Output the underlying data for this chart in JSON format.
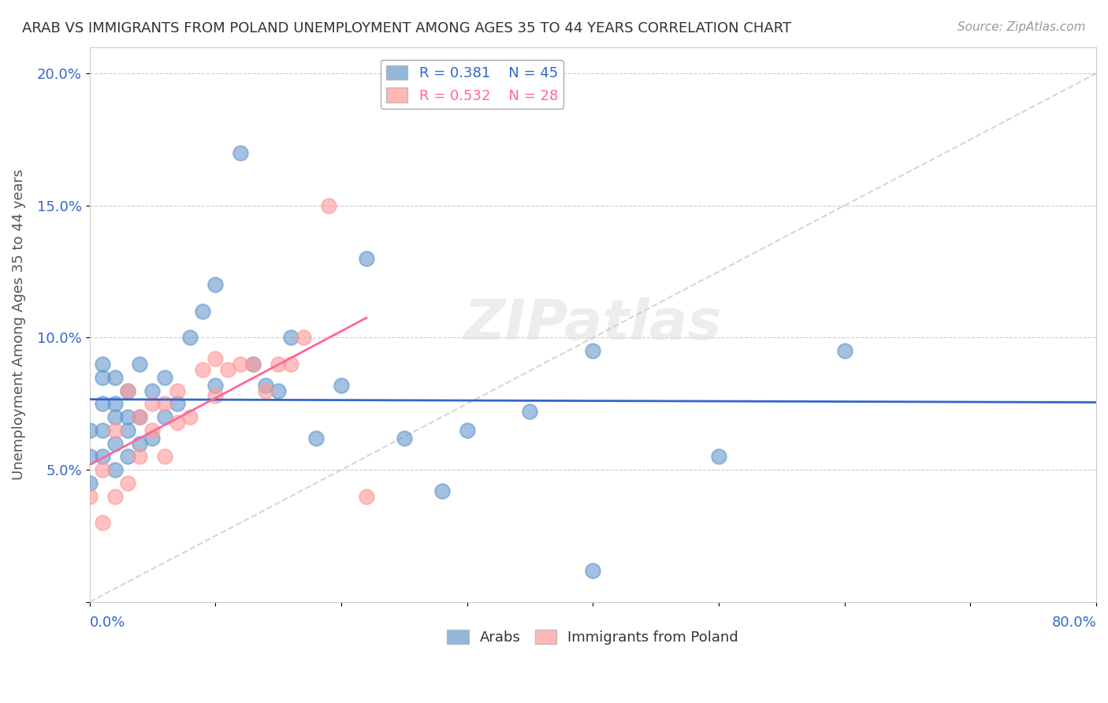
{
  "title": "ARAB VS IMMIGRANTS FROM POLAND UNEMPLOYMENT AMONG AGES 35 TO 44 YEARS CORRELATION CHART",
  "source": "Source: ZipAtlas.com",
  "ylabel": "Unemployment Among Ages 35 to 44 years",
  "ytick_vals": [
    0.0,
    0.05,
    0.1,
    0.15,
    0.2
  ],
  "ytick_labels": [
    "",
    "5.0%",
    "10.0%",
    "15.0%",
    "20.0%"
  ],
  "xlim": [
    0.0,
    0.8
  ],
  "ylim": [
    0.0,
    0.21
  ],
  "arab_R": 0.381,
  "arab_N": 45,
  "poland_R": 0.532,
  "poland_N": 28,
  "arab_color": "#6699CC",
  "poland_color": "#FF9999",
  "arab_line_color": "#3366CC",
  "poland_line_color": "#FF6699",
  "watermark": "ZIPatlas",
  "arab_x": [
    0.0,
    0.0,
    0.0,
    0.01,
    0.01,
    0.01,
    0.01,
    0.01,
    0.02,
    0.02,
    0.02,
    0.02,
    0.02,
    0.03,
    0.03,
    0.03,
    0.03,
    0.04,
    0.04,
    0.04,
    0.05,
    0.05,
    0.06,
    0.06,
    0.07,
    0.08,
    0.09,
    0.1,
    0.1,
    0.12,
    0.13,
    0.14,
    0.15,
    0.16,
    0.18,
    0.2,
    0.22,
    0.25,
    0.28,
    0.3,
    0.35,
    0.4,
    0.5,
    0.6,
    0.4
  ],
  "arab_y": [
    0.055,
    0.065,
    0.045,
    0.055,
    0.065,
    0.075,
    0.085,
    0.09,
    0.05,
    0.06,
    0.07,
    0.075,
    0.085,
    0.055,
    0.065,
    0.07,
    0.08,
    0.06,
    0.07,
    0.09,
    0.062,
    0.08,
    0.07,
    0.085,
    0.075,
    0.1,
    0.11,
    0.082,
    0.12,
    0.17,
    0.09,
    0.082,
    0.08,
    0.1,
    0.062,
    0.082,
    0.13,
    0.062,
    0.042,
    0.065,
    0.072,
    0.095,
    0.055,
    0.095,
    0.012
  ],
  "poland_x": [
    0.0,
    0.01,
    0.01,
    0.02,
    0.02,
    0.03,
    0.03,
    0.04,
    0.04,
    0.05,
    0.05,
    0.06,
    0.06,
    0.07,
    0.07,
    0.08,
    0.09,
    0.1,
    0.1,
    0.11,
    0.12,
    0.13,
    0.14,
    0.15,
    0.16,
    0.17,
    0.19,
    0.22
  ],
  "poland_y": [
    0.04,
    0.05,
    0.03,
    0.04,
    0.065,
    0.045,
    0.08,
    0.055,
    0.07,
    0.065,
    0.075,
    0.075,
    0.055,
    0.08,
    0.068,
    0.07,
    0.088,
    0.078,
    0.092,
    0.088,
    0.09,
    0.09,
    0.08,
    0.09,
    0.09,
    0.1,
    0.15,
    0.04
  ]
}
